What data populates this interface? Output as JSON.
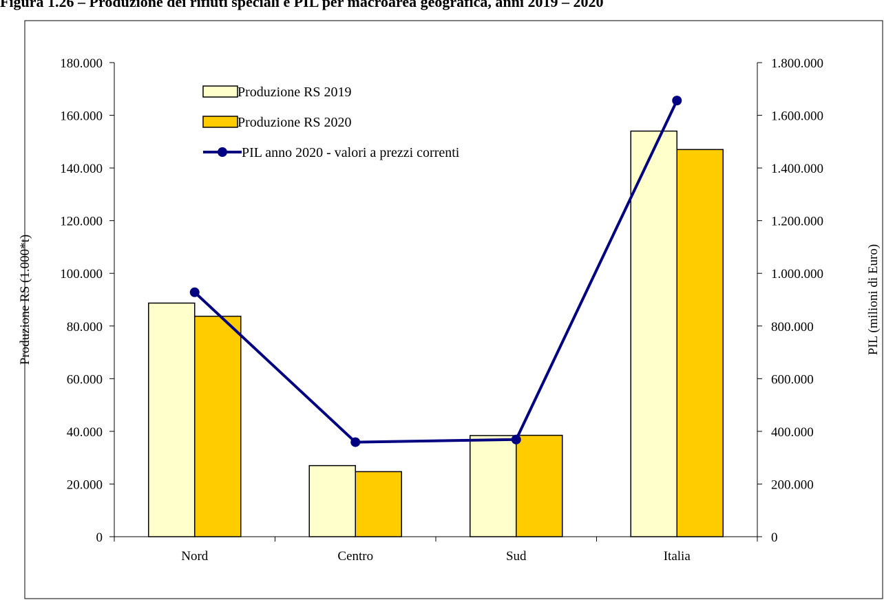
{
  "chart_data": {
    "type": "bar",
    "title": "Figura 1.26 – Produzione dei rifiuti speciali e PIL per macroarea geografica, anni 2019 – 2020",
    "categories": [
      "Nord",
      "Centro",
      "Sud",
      "Italia"
    ],
    "series": [
      {
        "name": "Produzione RS 2019",
        "type": "bar",
        "axis": "left",
        "color": "#FFFFCC",
        "values": [
          88700,
          27000,
          38400,
          154000
        ]
      },
      {
        "name": "Produzione RS 2020",
        "type": "bar",
        "axis": "left",
        "color": "#FFCC00",
        "values": [
          83700,
          24700,
          38500,
          147000
        ]
      },
      {
        "name": "PIL anno 2020 - valori a prezzi correnti",
        "type": "line",
        "axis": "right",
        "color": "#000080",
        "values": [
          928000,
          359000,
          369000,
          1656000
        ]
      }
    ],
    "ylabel": "Produzione RS (1.000*t)",
    "y2label": "PIL (milioni di Euro)",
    "ylim": [
      0,
      180000
    ],
    "y2lim": [
      0,
      1800000
    ],
    "yticks": [
      "0",
      "20.000",
      "40.000",
      "60.000",
      "80.000",
      "100.000",
      "120.000",
      "140.000",
      "160.000",
      "180.000"
    ],
    "y2ticks": [
      "0",
      "200.000",
      "400.000",
      "600.000",
      "800.000",
      "1.000.000",
      "1.200.000",
      "1.400.000",
      "1.600.000",
      "1.800.000"
    ],
    "legend": "top-left",
    "grid": false
  }
}
